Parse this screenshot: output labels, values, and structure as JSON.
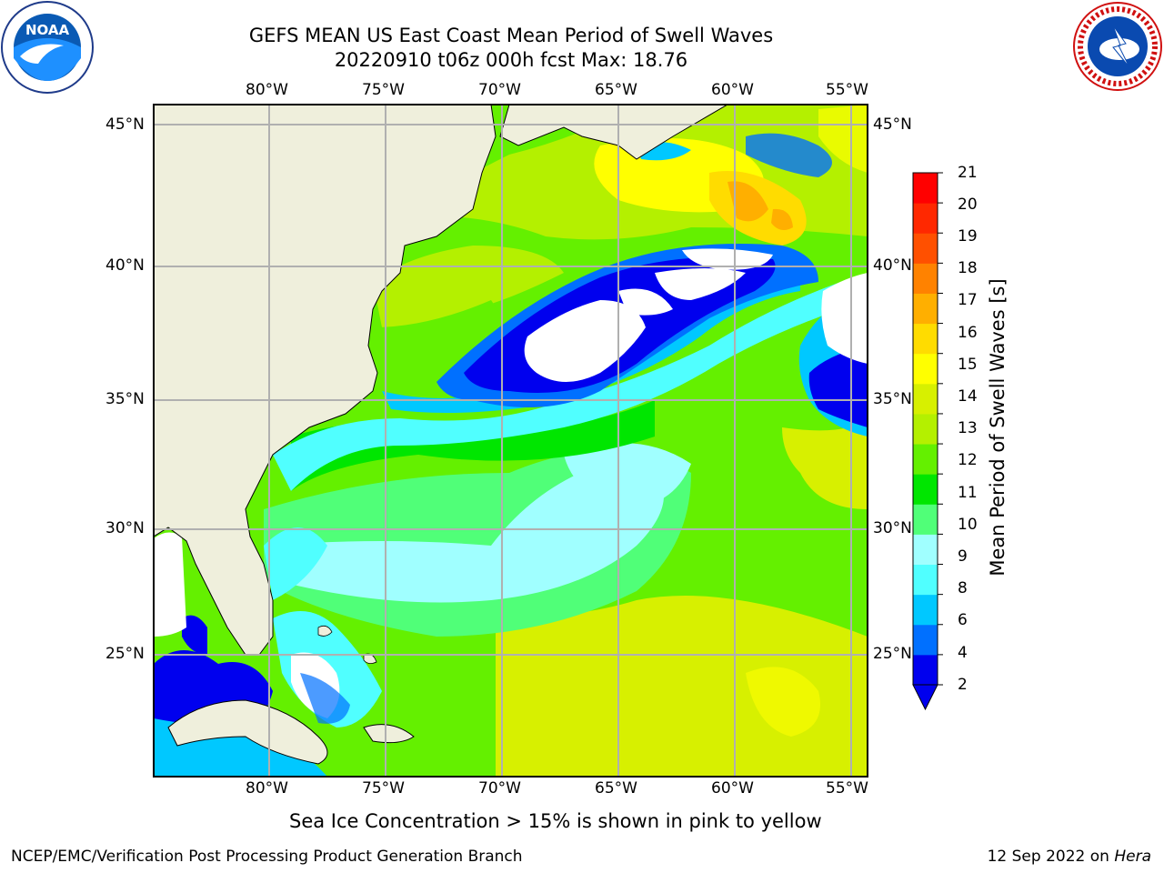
{
  "title_line1": "GEFS MEAN US East Coast Mean Period of Swell Waves",
  "title_line2": "20220910 t06z 000h fcst   Max: 18.76",
  "lon_ticks": [
    "80°W",
    "75°W",
    "70°W",
    "65°W",
    "60°W",
    "55°W"
  ],
  "lat_ticks": [
    "45°N",
    "40°N",
    "35°N",
    "30°N",
    "25°N"
  ],
  "colorbar": {
    "label": "Mean Period of Swell Waves [s]",
    "ticks": [
      "21",
      "20",
      "19",
      "18",
      "17",
      "16",
      "15",
      "14",
      "13",
      "12",
      "11",
      "10",
      "9",
      "8",
      "6",
      "4",
      "2"
    ],
    "colors": [
      "#0000ee",
      "#0070ff",
      "#00c8ff",
      "#50ffff",
      "#a0ffff",
      "#50ff78",
      "#00e600",
      "#64f000",
      "#b4f000",
      "#d7f000",
      "#ffff00",
      "#ffdc00",
      "#ffaf00",
      "#ff8200",
      "#ff5000",
      "#ff2800",
      "#ff0000"
    ]
  },
  "note": "Sea Ice Concentration > 15% is shown in pink to yellow",
  "footer_left": "NCEP/EMC/Verification Post Processing Product Generation Branch",
  "footer_date": "12 Sep 2022 on",
  "footer_machine": "Hera",
  "logos": {
    "left": {
      "icon": "noaa-logo",
      "text": "NOAA"
    },
    "right": {
      "icon": "nws-logo",
      "text": "NATIONAL WEATHER SERVICE"
    }
  }
}
